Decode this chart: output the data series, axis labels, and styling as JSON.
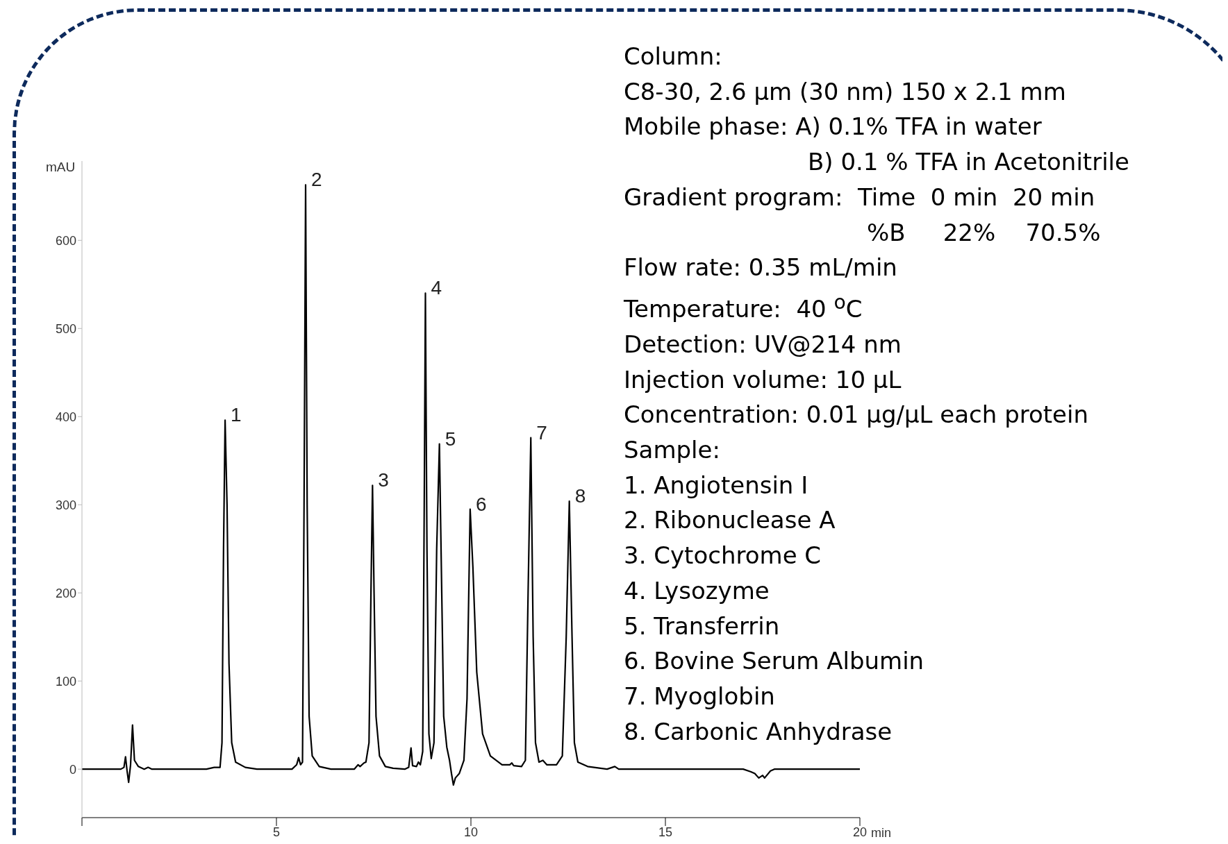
{
  "chart_data": {
    "type": "line",
    "ylabel": "mAU",
    "xlabel": "min",
    "xlim": [
      0,
      20
    ],
    "xticks": [
      {
        "value": 0,
        "label": null
      },
      5,
      10,
      15,
      20
    ],
    "ylim": [
      -55,
      690
    ],
    "yticks": [
      0,
      100,
      200,
      300,
      400,
      500,
      600
    ],
    "grid": false,
    "legend": false,
    "marker": "none",
    "line_style": "solid",
    "series": [
      {
        "color": "#000000",
        "x": [
          0,
          1.0,
          1.08,
          1.12,
          1.16,
          1.2,
          1.25,
          1.3,
          1.35,
          1.45,
          1.6,
          1.7,
          1.8,
          2.0,
          3.2,
          3.4,
          3.55,
          3.6,
          3.64,
          3.68,
          3.73,
          3.78,
          3.85,
          3.95,
          4.2,
          4.5,
          5.4,
          5.52,
          5.57,
          5.62,
          5.67,
          5.71,
          5.75,
          5.79,
          5.84,
          5.92,
          6.1,
          6.4,
          7.0,
          7.1,
          7.15,
          7.25,
          7.3,
          7.38,
          7.43,
          7.47,
          7.51,
          7.56,
          7.65,
          7.8,
          8.0,
          8.3,
          8.4,
          8.46,
          8.5,
          8.6,
          8.65,
          8.7,
          8.76,
          8.8,
          8.83,
          8.87,
          8.92,
          8.98,
          9.05,
          9.12,
          9.19,
          9.25,
          9.3,
          9.38,
          9.45,
          9.5,
          9.55,
          9.6,
          9.7,
          9.82,
          9.9,
          9.98,
          10.05,
          10.15,
          10.3,
          10.5,
          10.8,
          11.0,
          11.05,
          11.1,
          11.3,
          11.4,
          11.47,
          11.54,
          11.6,
          11.66,
          11.75,
          11.85,
          11.95,
          12.2,
          12.35,
          12.45,
          12.53,
          12.6,
          12.66,
          12.75,
          13.0,
          13.5,
          13.7,
          13.8,
          14.5,
          16.0,
          17.0,
          17.2,
          17.3,
          17.4,
          17.5,
          17.55,
          17.7,
          17.8,
          20
        ],
        "values": [
          0,
          0,
          2,
          14,
          -2,
          -15,
          5,
          50,
          10,
          3,
          0,
          2,
          0,
          0,
          0,
          2,
          2,
          30,
          250,
          396,
          300,
          120,
          30,
          8,
          2,
          0,
          0,
          5,
          13,
          5,
          8,
          300,
          663,
          300,
          60,
          15,
          3,
          0,
          0,
          5,
          3,
          7,
          8,
          30,
          200,
          322,
          200,
          60,
          15,
          3,
          1,
          0,
          2,
          24,
          4,
          3,
          8,
          5,
          20,
          300,
          540,
          250,
          40,
          12,
          30,
          250,
          369,
          200,
          60,
          25,
          10,
          -5,
          -18,
          -10,
          -5,
          10,
          80,
          295,
          230,
          110,
          40,
          15,
          5,
          5,
          7,
          4,
          3,
          10,
          200,
          376,
          150,
          30,
          8,
          10,
          5,
          5,
          15,
          150,
          304,
          150,
          30,
          8,
          3,
          0,
          3,
          0,
          0,
          0,
          0,
          -3,
          -5,
          -10,
          -7,
          -10,
          -2,
          0,
          0
        ]
      }
    ],
    "annotations": [
      {
        "text": "1",
        "x": 3.68,
        "y": 396
      },
      {
        "text": "2",
        "x": 5.75,
        "y": 663
      },
      {
        "text": "3",
        "x": 7.47,
        "y": 322
      },
      {
        "text": "4",
        "x": 8.83,
        "y": 540
      },
      {
        "text": "5",
        "x": 9.19,
        "y": 369
      },
      {
        "text": "6",
        "x": 9.98,
        "y": 295
      },
      {
        "text": "7",
        "x": 11.54,
        "y": 376
      },
      {
        "text": "8",
        "x": 12.53,
        "y": 304
      },
      "Column:",
      "C8-30, 2.6 µm (30 nm) 150 x 2.1 mm",
      "Mobile phase: A) 0.1% TFA in water",
      "B) 0.1 % TFA in Acetonitrile",
      "Gradient program:  Time  0 min  20 min",
      "%B     22%    70.5%",
      "Flow rate: 0.35 mL/min",
      "Temperature:  40 $^{o}$C",
      "Detection: UV@214 nm",
      "Injection volume: 10 µL",
      "Concentration: 0.01 µg/µL each protein",
      "Sample:",
      "1. Angiotensin I",
      "2. Ribonuclease A",
      "3. Cytochrome C",
      "4. Lysozyme",
      "5. Transferrin",
      "6. Bovine Serum Albumin",
      "7. Myoglobin",
      "8. Carbonic Anhydrase"
    ]
  }
}
